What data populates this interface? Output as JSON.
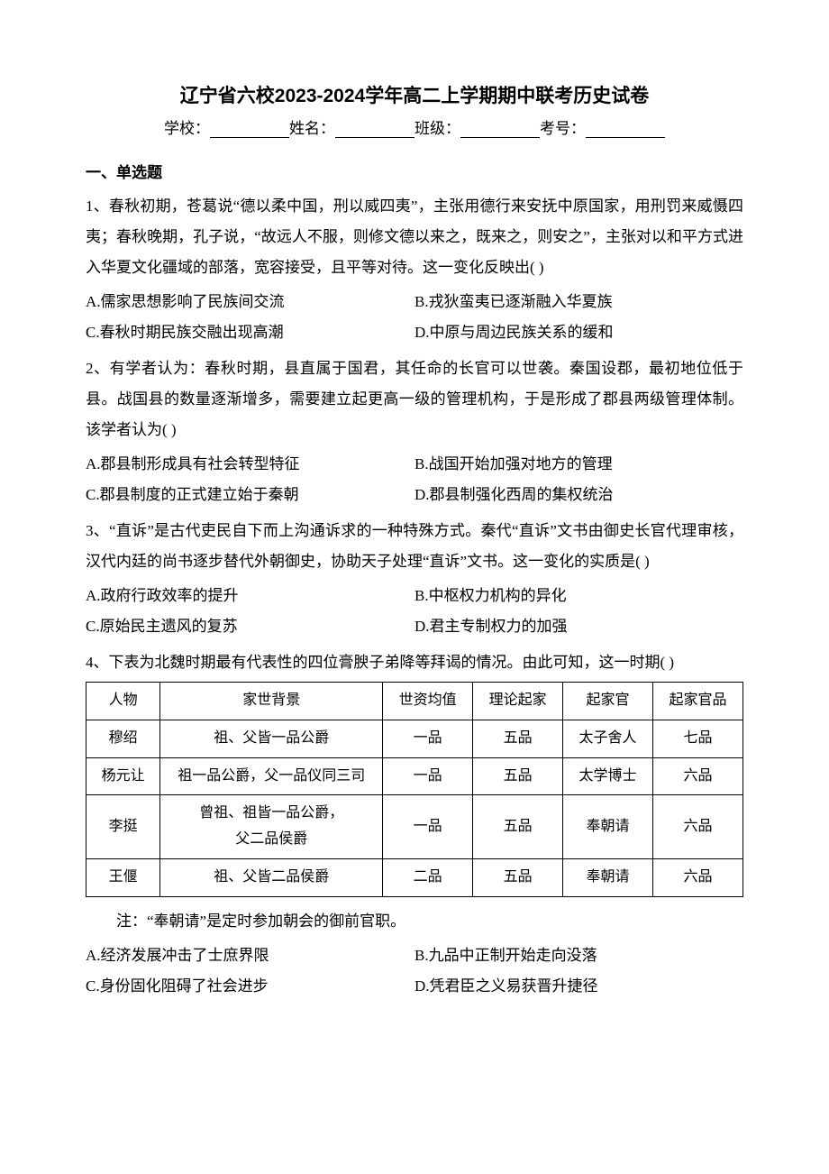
{
  "title": "辽宁省六校2023-2024学年高二上学期期中联考历史试卷",
  "info": {
    "school_label": "学校：",
    "name_label": "姓名：",
    "class_label": "班级：",
    "exam_id_label": "考号："
  },
  "section": "一、单选题",
  "q1": {
    "text": "1、春秋初期，苍葛说“德以柔中国，刑以威四夷”，主张用德行来安抚中原国家，用刑罚来威慑四夷；春秋晚期，孔子说，“故远人不服，则修文德以来之，既来之，则安之”，主张对以和平方式进入华夏文化疆域的部落，宽容接受，且平等对待。这一变化反映出(   )",
    "a": "A.儒家思想影响了民族间交流",
    "b": "B.戎狄蛮夷已逐渐融入华夏族",
    "c": "C.春秋时期民族交融出现高潮",
    "d": "D.中原与周边民族关系的缓和"
  },
  "q2": {
    "text": "2、有学者认为：春秋时期，县直属于国君，其任命的长官可以世袭。秦国设郡，最初地位低于县。战国县的数量逐渐增多，需要建立起更高一级的管理机构，于是形成了郡县两级管理体制。该学者认为(   )",
    "a": "A.郡县制形成具有社会转型特征",
    "b": "B.战国开始加强对地方的管理",
    "c": "C.郡县制度的正式建立始于秦朝",
    "d": "D.郡县制强化西周的集权统治"
  },
  "q3": {
    "text": "3、“直诉”是古代吏民自下而上沟通诉求的一种特殊方式。秦代“直诉”文书由御史长官代理审核，汉代内廷的尚书逐步替代外朝御史，协助天子处理“直诉”文书。这一变化的实质是(   )",
    "a": "A.政府行政效率的提升",
    "b": "B.中枢权力机构的异化",
    "c": "C.原始民主遗风的复苏",
    "d": "D.君主专制权力的加强"
  },
  "q4": {
    "text": "4、下表为北魏时期最有代表性的四位膏腴子弟降等拜谒的情况。由此可知，这一时期(   )",
    "table": {
      "headers": [
        "人物",
        "家世背景",
        "世资均值",
        "理论起家",
        "起家官",
        "起家官品"
      ],
      "rows": [
        [
          "穆绍",
          "祖、父皆一品公爵",
          "一品",
          "五品",
          "太子舍人",
          "七品"
        ],
        [
          "杨元让",
          "祖一品公爵，父一品仪同三司",
          "一品",
          "五品",
          "太学博士",
          "六品"
        ],
        [
          "李挺",
          "曾祖、祖皆一品公爵，\n父二品侯爵",
          "一品",
          "五品",
          "奉朝请",
          "六品"
        ],
        [
          "王偃",
          "祖、父皆二品侯爵",
          "二品",
          "五品",
          "奉朝请",
          "六品"
        ]
      ]
    },
    "note": "注：“奉朝请”是定时参加朝会的御前官职。",
    "a": "A.经济发展冲击了士庶界限",
    "b": "B.九品中正制开始走向没落",
    "c": "C.身份固化阻碍了社会进步",
    "d": "D.凭君臣之义易获晋升捷径"
  },
  "styling": {
    "body_width": 920,
    "body_height": 1302,
    "background": "#ffffff",
    "text_color": "#000000",
    "title_fontsize": 21,
    "body_fontsize": 17,
    "line_height": 2.0,
    "font_family_title": "SimHei",
    "font_family_body": "SimSun",
    "table_border_color": "#000000",
    "blank_width": 88
  }
}
